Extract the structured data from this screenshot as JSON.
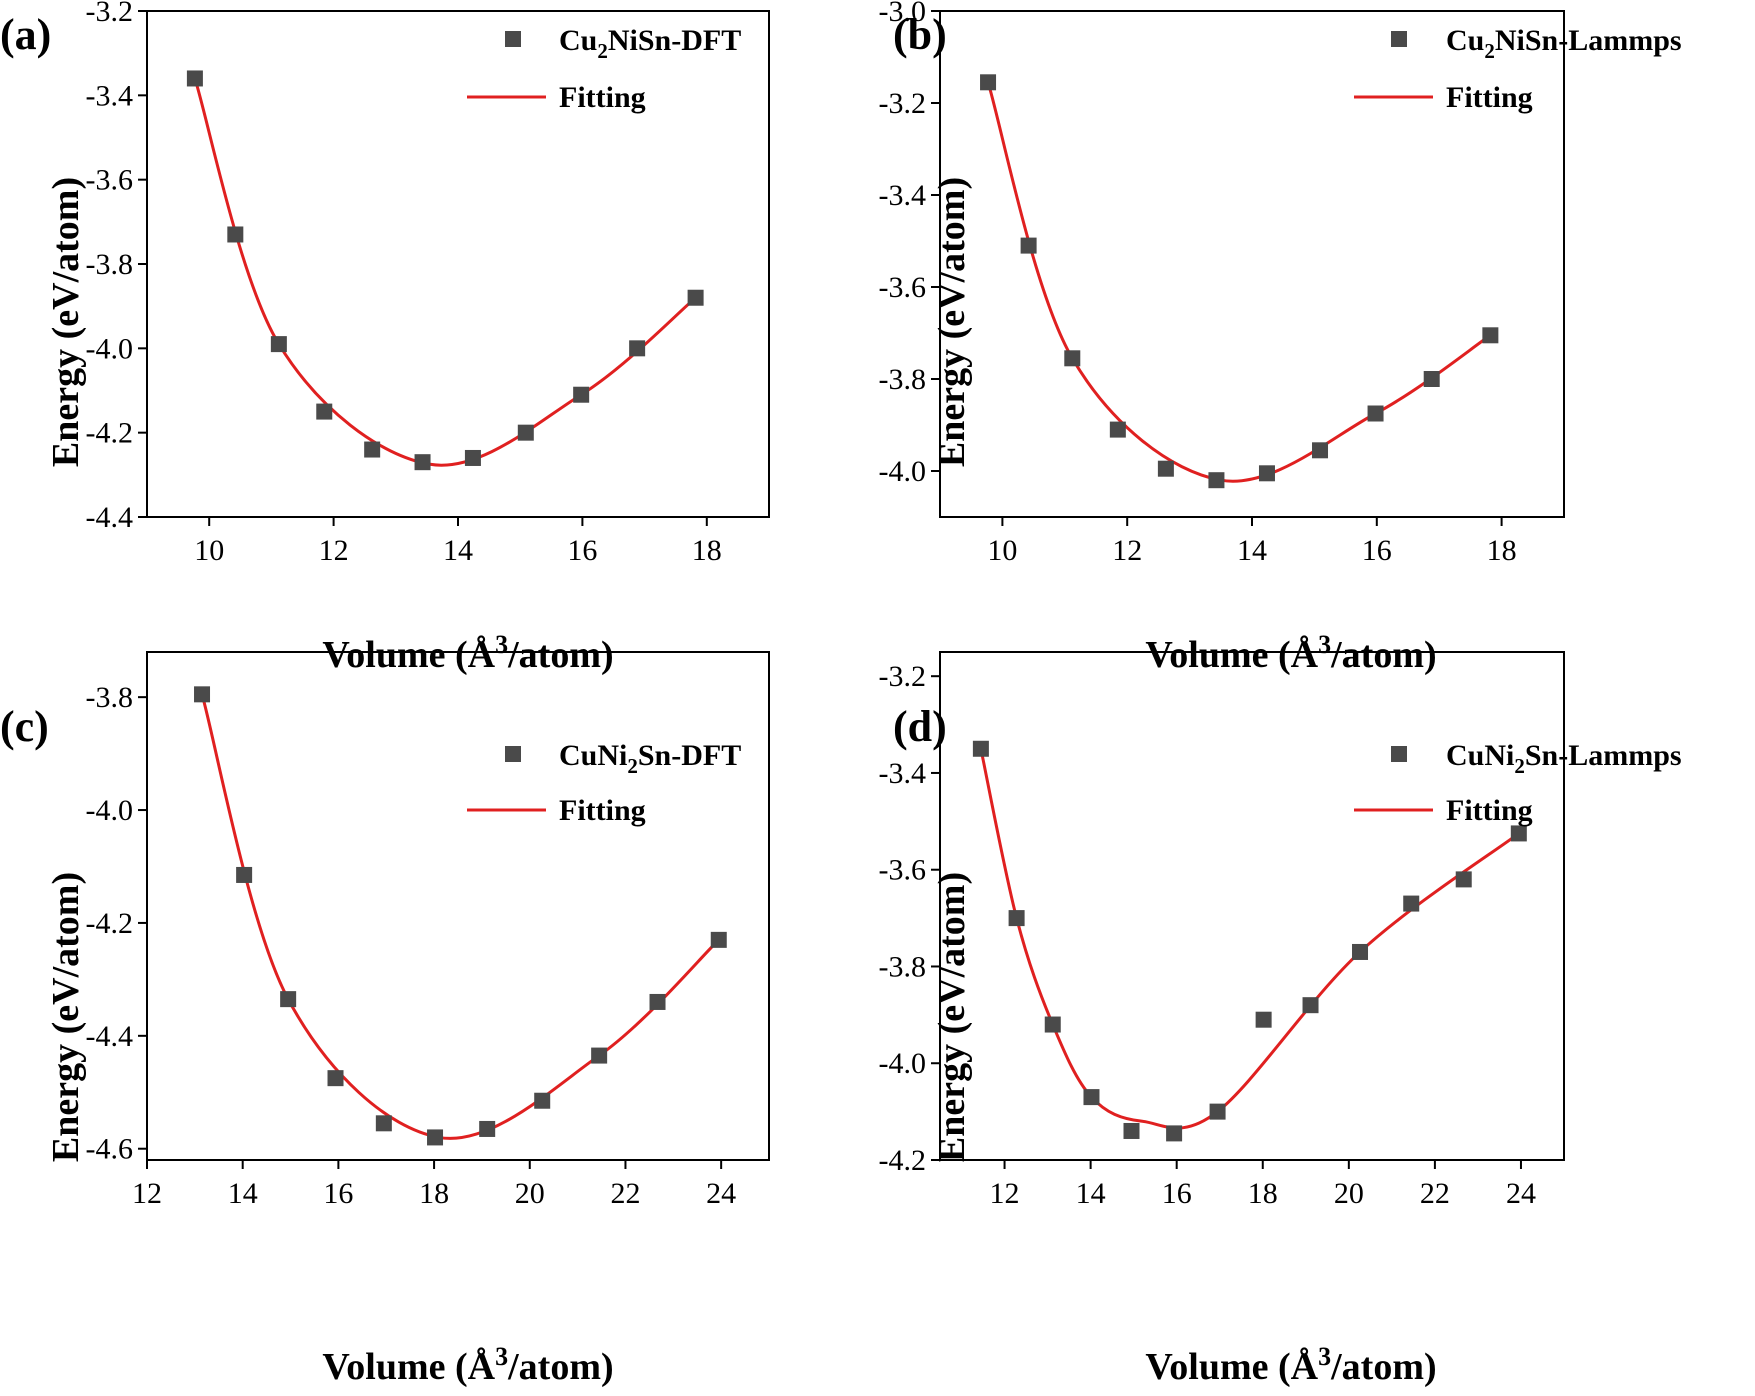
{
  "colors": {
    "marker": "#4a4a4a",
    "fit": "#e02020",
    "axis": "#000000"
  },
  "chart_data": [
    {
      "id": "a",
      "type": "scatter",
      "panel_label": "(a)",
      "xlabel": "Volume (Å³/atom)",
      "xlabel_main": "Volume (Å",
      "xlabel_sup": "3",
      "xlabel_tail": "/atom)",
      "ylabel": "Energy (eV/atom)",
      "xlim": [
        9.0,
        19.0
      ],
      "ylim": [
        -4.4,
        -3.2
      ],
      "xticks": [
        10,
        12,
        14,
        16,
        18
      ],
      "yticks": [
        -4.4,
        -4.2,
        -4.0,
        -3.8,
        -3.6,
        -3.4,
        -3.2
      ],
      "xtick_labels": [
        "10",
        "12",
        "14",
        "16",
        "18"
      ],
      "ytick_labels": [
        "-4.4",
        "-4.2",
        "-4.0",
        "-3.8",
        "-3.6",
        "-3.4",
        "-3.2"
      ],
      "legend": {
        "placement": "top-right",
        "scatter_label": "Cu₂NiSn-DFT",
        "scatter_label_parts": [
          "Cu",
          "2",
          "NiSn-DFT"
        ],
        "fit_label": "Fitting"
      },
      "series": [
        {
          "name": "Cu₂NiSn-DFT",
          "kind": "scatter",
          "x": [
            9.77,
            10.42,
            11.12,
            11.85,
            12.62,
            13.43,
            14.24,
            15.09,
            15.98,
            16.88,
            17.82
          ],
          "y": [
            -3.36,
            -3.73,
            -3.99,
            -4.15,
            -4.24,
            -4.27,
            -4.26,
            -4.2,
            -4.11,
            -4.0,
            -3.88
          ]
        },
        {
          "name": "Fitting",
          "kind": "line",
          "min_x": 13.55,
          "min_y": -4.275,
          "fit_points": [
            9.77,
            11.12,
            13.55,
            15.98,
            17.82
          ]
        }
      ]
    },
    {
      "id": "b",
      "type": "scatter",
      "panel_label": "(b)",
      "xlabel": "Volume (Å³/atom)",
      "xlabel_main": "Volume (Å",
      "xlabel_sup": "3",
      "xlabel_tail": "/atom)",
      "ylabel": "Energy (eV/atom)",
      "xlim": [
        9.0,
        19.0
      ],
      "ylim": [
        -4.1,
        -3.0
      ],
      "xticks": [
        10,
        12,
        14,
        16,
        18
      ],
      "yticks": [
        -4.0,
        -3.8,
        -3.6,
        -3.4,
        -3.2,
        -3.0
      ],
      "xtick_labels": [
        "10",
        "12",
        "14",
        "16",
        "18"
      ],
      "ytick_labels": [
        "-4.0",
        "-3.8",
        "-3.6",
        "-3.4",
        "-3.2",
        "-3.0"
      ],
      "legend": {
        "placement": "top-right",
        "scatter_label": "Cu₂NiSn-Lammps",
        "scatter_label_parts": [
          "Cu",
          "2",
          "NiSn-Lammps"
        ],
        "fit_label": "Fitting"
      },
      "series": [
        {
          "name": "Cu₂NiSn-Lammps",
          "kind": "scatter",
          "x": [
            9.77,
            10.42,
            11.12,
            11.85,
            12.62,
            13.43,
            14.24,
            15.09,
            15.98,
            16.88,
            17.82
          ],
          "y": [
            -3.155,
            -3.51,
            -3.755,
            -3.91,
            -3.995,
            -4.02,
            -4.005,
            -3.955,
            -3.875,
            -3.8,
            -3.705
          ]
        },
        {
          "name": "Fitting",
          "kind": "line",
          "min_x": 13.5,
          "min_y": -4.02,
          "fit_points": [
            9.77,
            11.12,
            13.5,
            15.98,
            17.82
          ]
        }
      ]
    },
    {
      "id": "c",
      "type": "scatter",
      "panel_label": "(c)",
      "xlabel": "Volume (Å³/atom)",
      "xlabel_main": "Volume (Å",
      "xlabel_sup": "3",
      "xlabel_tail": "/atom)",
      "ylabel": "Energy (eV/atom)",
      "xlim": [
        12.0,
        25.0
      ],
      "ylim": [
        -4.62,
        -3.72
      ],
      "xticks": [
        12,
        14,
        16,
        18,
        20,
        22,
        24
      ],
      "yticks": [
        -4.6,
        -4.4,
        -4.2,
        -4.0,
        -3.8
      ],
      "xtick_labels": [
        "12",
        "14",
        "16",
        "18",
        "20",
        "22",
        "24"
      ],
      "ytick_labels": [
        "-4.6",
        "-4.4",
        "-4.2",
        "-4.0",
        "-3.8"
      ],
      "legend": {
        "placement": "top-right",
        "scatter_label": "CuNi₂Sn-DFT",
        "scatter_label_parts": [
          "CuNi",
          "2",
          "Sn-DFT"
        ],
        "fit_label": "Fitting"
      },
      "series": [
        {
          "name": "CuNi₂Sn-DFT",
          "kind": "scatter",
          "x": [
            13.15,
            14.03,
            14.95,
            15.94,
            16.95,
            18.02,
            19.11,
            20.26,
            21.45,
            22.67,
            23.95
          ],
          "y": [
            -3.795,
            -4.115,
            -4.335,
            -4.475,
            -4.555,
            -4.58,
            -4.565,
            -4.515,
            -4.435,
            -4.34,
            -4.23
          ]
        },
        {
          "name": "Fitting",
          "kind": "line",
          "min_x": 18.1,
          "min_y": -4.58,
          "fit_points": [
            13.15,
            14.95,
            18.1,
            21.45,
            23.95
          ]
        }
      ]
    },
    {
      "id": "d",
      "type": "scatter",
      "panel_label": "(d)",
      "xlabel": "Volume (Å³/atom)",
      "xlabel_main": "Volume (Å",
      "xlabel_sup": "3",
      "xlabel_tail": "/atom)",
      "ylabel": "Energy (eV/atom)",
      "xlim": [
        10.5,
        25.0
      ],
      "ylim": [
        -4.2,
        -3.15
      ],
      "xticks": [
        12,
        14,
        16,
        18,
        20,
        22,
        24
      ],
      "yticks": [
        -4.2,
        -4.0,
        -3.8,
        -3.6,
        -3.4,
        -3.2
      ],
      "xtick_labels": [
        "12",
        "14",
        "16",
        "18",
        "20",
        "22",
        "24"
      ],
      "ytick_labels": [
        "-4.2",
        "-4.0",
        "-3.8",
        "-3.6",
        "-3.4",
        "-3.2"
      ],
      "legend": {
        "placement": "top-right",
        "scatter_label": "CuNi₂Sn-Lammps",
        "scatter_label_parts": [
          "CuNi",
          "2",
          "Sn-Lammps"
        ],
        "fit_label": "Fitting"
      },
      "series": [
        {
          "name": "CuNi₂Sn-Lammps",
          "kind": "scatter",
          "x": [
            11.45,
            12.28,
            13.12,
            14.02,
            14.95,
            15.94,
            16.95,
            18.02,
            19.11,
            20.26,
            21.45,
            22.67,
            23.95
          ],
          "y": [
            -3.35,
            -3.7,
            -3.92,
            -4.07,
            -4.14,
            -4.145,
            -4.1,
            -3.91,
            -3.88,
            -3.77,
            -3.67,
            -3.62,
            -3.525
          ]
        },
        {
          "name": "Fitting",
          "kind": "line",
          "min_x": 15.2,
          "min_y": -4.12,
          "fit_points": [
            11.45,
            12.28,
            13.12,
            14.02,
            15.2,
            16.95,
            18.5,
            20.26,
            22.0,
            23.95
          ]
        }
      ]
    }
  ]
}
